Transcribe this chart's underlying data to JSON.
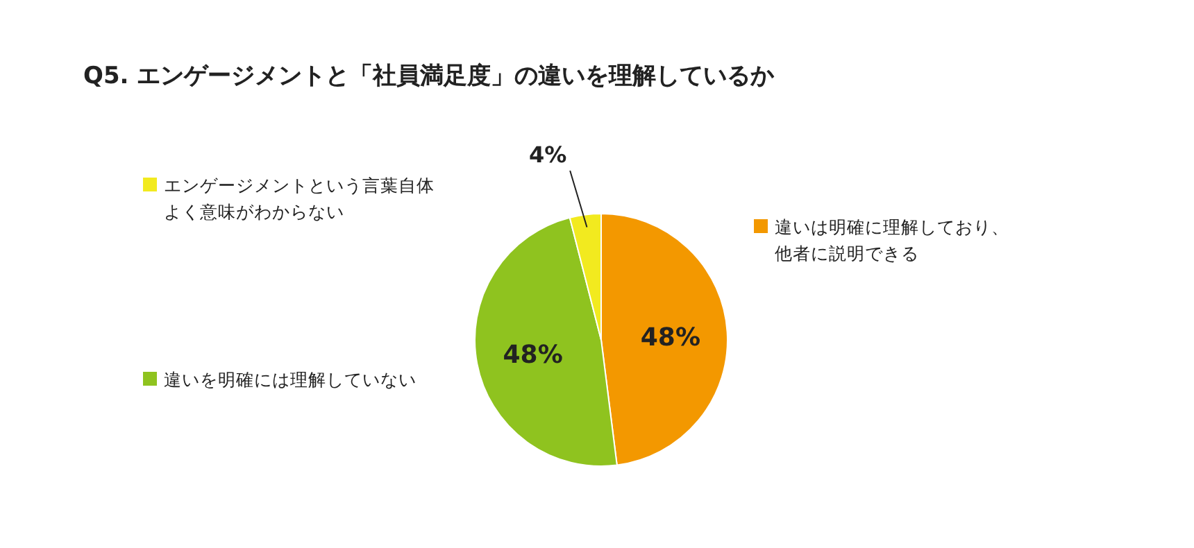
{
  "chart_data": {
    "type": "pie",
    "title": "Q5. エンゲージメントと「社員満足度」の違いを理解しているか",
    "categories": [
      "違いは明確に理解しており、他者に説明できる",
      "違いを明確には理解していない",
      "エンゲージメントという言葉自体よく意味がわからない"
    ],
    "values": [
      48,
      48,
      4
    ],
    "colors": [
      "#f39800",
      "#8fc31f",
      "#f2ea1f"
    ],
    "value_labels": [
      "48%",
      "48%",
      "4%"
    ],
    "legend": "left"
  }
}
